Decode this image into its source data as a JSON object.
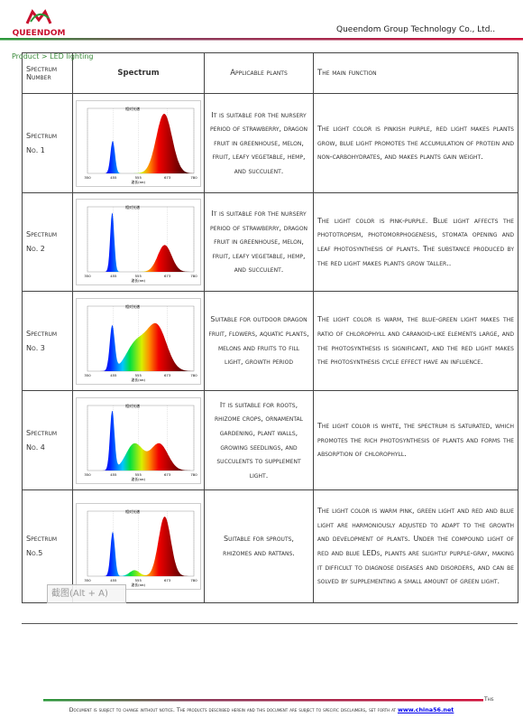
{
  "header": {
    "logo": "QUEENDOM",
    "company": "Queendom Group Technology Co., Ltd..",
    "breadcrumb": "Product > LED lighting"
  },
  "table": {
    "columns": [
      "Spectrum Number",
      "Spectrum",
      "Applicable plants",
      "The main function"
    ],
    "rows": [
      {
        "number": "Spectrum No. 1",
        "plants": "It is suitable for the nursery period of strawberry, dragon fruit in greenhouse, melon, fruit, leafy vegetable, hemp, and succulent.",
        "function": "The light color is pinkish purple, red light makes plants grow, blue light promotes the accumulation of protein and non-carbohydrates, and makes plants gain weight."
      },
      {
        "number": "Spectrum No. 2",
        "plants": "It is suitable for the nursery period of strawberry, dragon fruit in greenhouse, melon, fruit, leafy vegetable, hemp, and succulent.",
        "function": "The light color is pink-purple. Blue light affects the phototropism, photomorphogenesis, stomata opening and leaf photosynthesis of plants. The substance produced by the red light makes plants grow taller.."
      },
      {
        "number": "Spectrum No. 3",
        "plants": "Suitable for outdoor dragon fruit, flowers, aquatic plants, melons and fruits to fill light, growth period",
        "function": "The light color is warm, the blue-green light makes the ratio of chlorophyll and caranoid-like elements large, and the photosynthesis is significant, and the red light makes the photosynthesis cycle effect have an influence."
      },
      {
        "number": "Spectrum No. 4",
        "plants": "It is suitable for roots, rhizome crops, ornamental gardening, plant walls, growing seedlings, and succulents to supplement light.",
        "function": "The light color is white, the spectrum is saturated, which promotes the rich photosynthesis of plants and forms the absorption of chlorophyll."
      },
      {
        "number": "Spectrum No.5",
        "plants": "Suitable for sprouts, rhizomes and rattans.",
        "function": "The light color is warm pink, green light and red and blue light are harmoniously adjusted to adapt to the growth and development of plants. Under the compound light of red and blue LEDs, plants are slightly purple-gray, making it difficult to diagnose diseases and disorders, and can be solved by supplementing a small amount of green light."
      }
    ]
  },
  "spectrum_image": {
    "caption": "相对光谱",
    "x_ticks": [
      "350",
      "455",
      "555",
      "673",
      "780"
    ],
    "x_label": "波长(nm)"
  },
  "tooltip": "截图(Alt + A)",
  "footer": {
    "lead": "This",
    "notice": "Document is subject to change without notice. The products described herein and this document are subject to specific disclaimers, set forth at",
    "link": "www.china56.net"
  }
}
